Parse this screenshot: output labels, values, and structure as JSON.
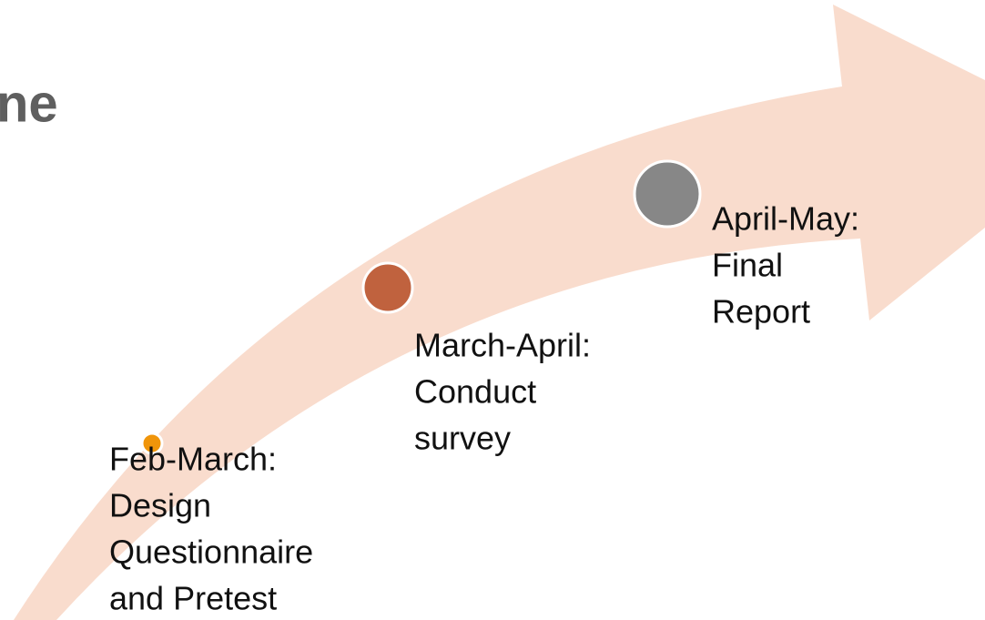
{
  "title": "ne",
  "steps": [
    {
      "lines": [
        "Feb-March:",
        "Design",
        "Questionnaire",
        "and Pretest"
      ]
    },
    {
      "lines": [
        "March-April:",
        "Conduct",
        "survey"
      ]
    },
    {
      "lines": [
        "April-May:",
        "Final",
        "Report"
      ]
    }
  ]
}
